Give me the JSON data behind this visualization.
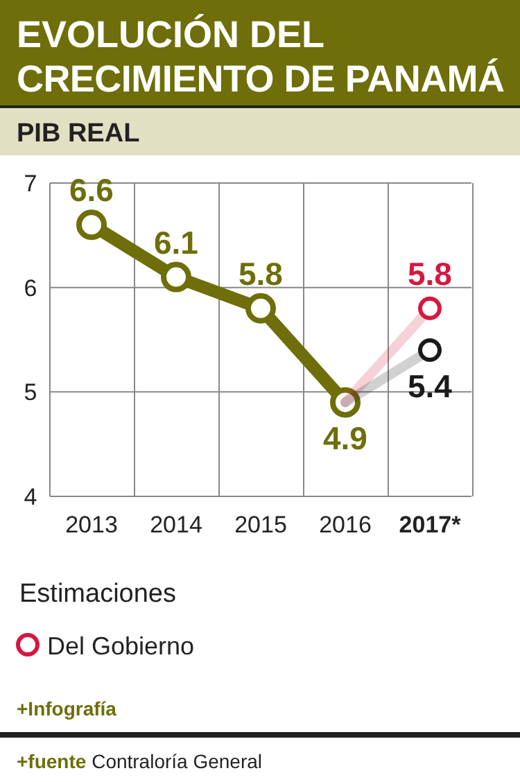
{
  "chart_data": {
    "type": "line",
    "title": "EVOLUCIÓN DEL CRECIMIENTO DE PANAMÁ",
    "subtitle": "PIB REAL",
    "categories": [
      "2013",
      "2014",
      "2015",
      "2016",
      "2017*"
    ],
    "series": [
      {
        "color": "#6e6e0a",
        "values": [
          6.6,
          6.1,
          5.8,
          4.9,
          null
        ],
        "value_labels": [
          "6.6",
          "6.1",
          "5.8",
          "4.9",
          null
        ]
      },
      {
        "name": "Del Gobierno",
        "color": "#d6173f",
        "values": [
          null,
          null,
          null,
          4.9,
          5.8
        ],
        "value_labels": [
          null,
          null,
          null,
          null,
          "5.8"
        ]
      },
      {
        "color": "#1a1a1a",
        "values": [
          null,
          null,
          null,
          4.9,
          5.4
        ],
        "value_labels": [
          null,
          null,
          null,
          null,
          "5.4"
        ]
      }
    ],
    "ylim": [
      4,
      7
    ],
    "yticks": [
      4,
      5,
      6,
      7
    ],
    "grid": true,
    "marker": "circle",
    "legend": "bottom",
    "legend_title": "Estimaciones",
    "annotations": [
      "+Infografía",
      "+fuente Contraloría General"
    ]
  }
}
